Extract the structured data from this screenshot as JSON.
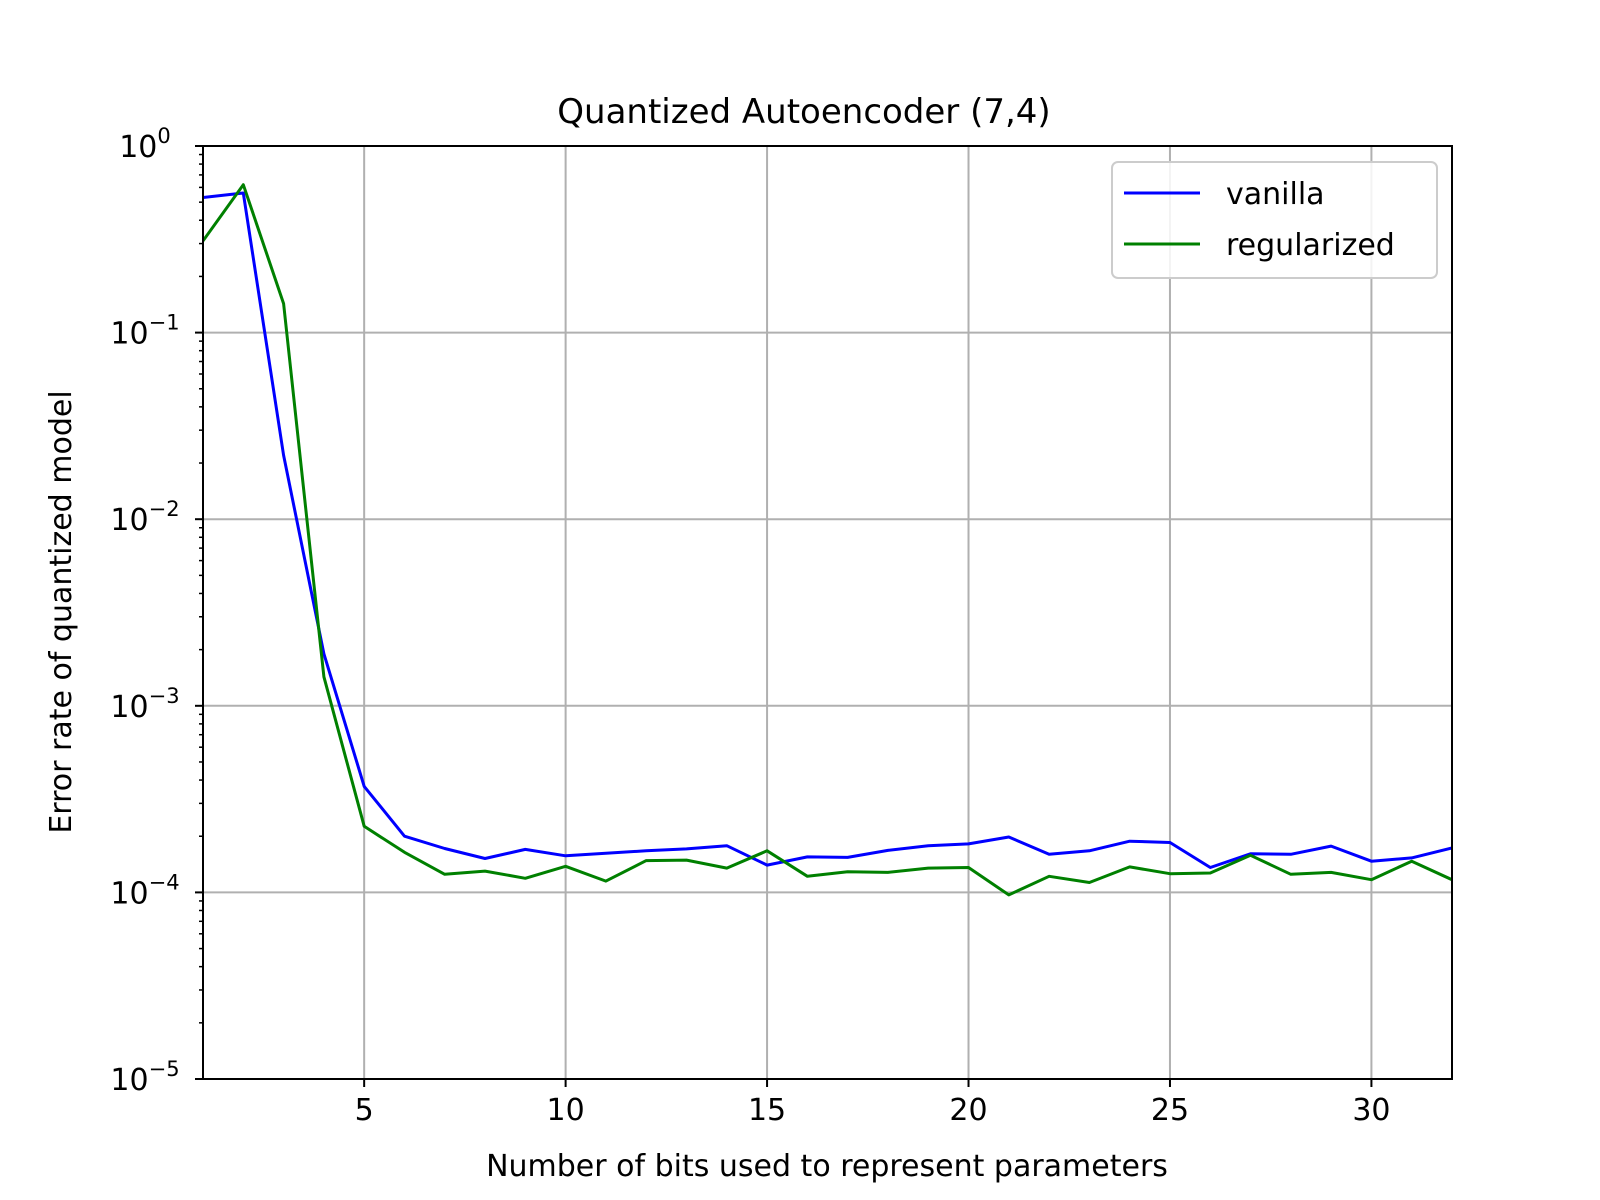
{
  "chart_data": {
    "type": "line",
    "title": "Quantized Autoencoder (7,4)",
    "xlabel": "Number of bits used to represent parameters",
    "ylabel": "Error rate of quantized model",
    "xlim": [
      1,
      32
    ],
    "ylim": [
      1e-05,
      1
    ],
    "yscale": "log",
    "grid": true,
    "legend_position": "top-right",
    "x_ticks": [
      5,
      10,
      15,
      20,
      25,
      30
    ],
    "x_tick_labels": [
      "5",
      "10",
      "15",
      "20",
      "25",
      "30"
    ],
    "y_ticks": [
      {
        "value": 1,
        "base": "10",
        "exp": "0"
      },
      {
        "value": 0.1,
        "base": "10",
        "exp": "−1"
      },
      {
        "value": 0.01,
        "base": "10",
        "exp": "−2"
      },
      {
        "value": 0.001,
        "base": "10",
        "exp": "−3"
      },
      {
        "value": 0.0001,
        "base": "10",
        "exp": "−4"
      },
      {
        "value": 1e-05,
        "base": "10",
        "exp": "−5"
      }
    ],
    "x": [
      1,
      2,
      3,
      4,
      5,
      6,
      7,
      8,
      9,
      10,
      11,
      12,
      13,
      14,
      15,
      16,
      17,
      18,
      19,
      20,
      21,
      22,
      23,
      24,
      25,
      26,
      27,
      28,
      29,
      30,
      31,
      32
    ],
    "series": [
      {
        "name": "vanilla",
        "color": "#0000ff",
        "values": [
          0.53,
          0.56,
          0.022,
          0.0019,
          0.00037,
          0.0002,
          0.000172,
          0.000152,
          0.00017,
          0.000157,
          0.000162,
          0.000167,
          0.000171,
          0.000178,
          0.00014,
          0.000155,
          0.000154,
          0.000168,
          0.000178,
          0.000182,
          0.000198,
          0.00016,
          0.000167,
          0.000188,
          0.000185,
          0.000136,
          0.000161,
          0.00016,
          0.000177,
          0.000147,
          0.000153,
          0.000173
        ]
      },
      {
        "name": "regularized",
        "color": "#008000",
        "values": [
          0.31,
          0.62,
          0.143,
          0.00143,
          0.000226,
          0.000164,
          0.000125,
          0.00013,
          0.000119,
          0.000138,
          0.000115,
          0.000148,
          0.000149,
          0.000135,
          0.000167,
          0.000122,
          0.000129,
          0.000128,
          0.000135,
          0.000136,
          9.7e-05,
          0.000122,
          0.000113,
          0.000137,
          0.000126,
          0.000127,
          0.000158,
          0.000125,
          0.000128,
          0.000117,
          0.000147,
          0.000117
        ]
      }
    ]
  }
}
